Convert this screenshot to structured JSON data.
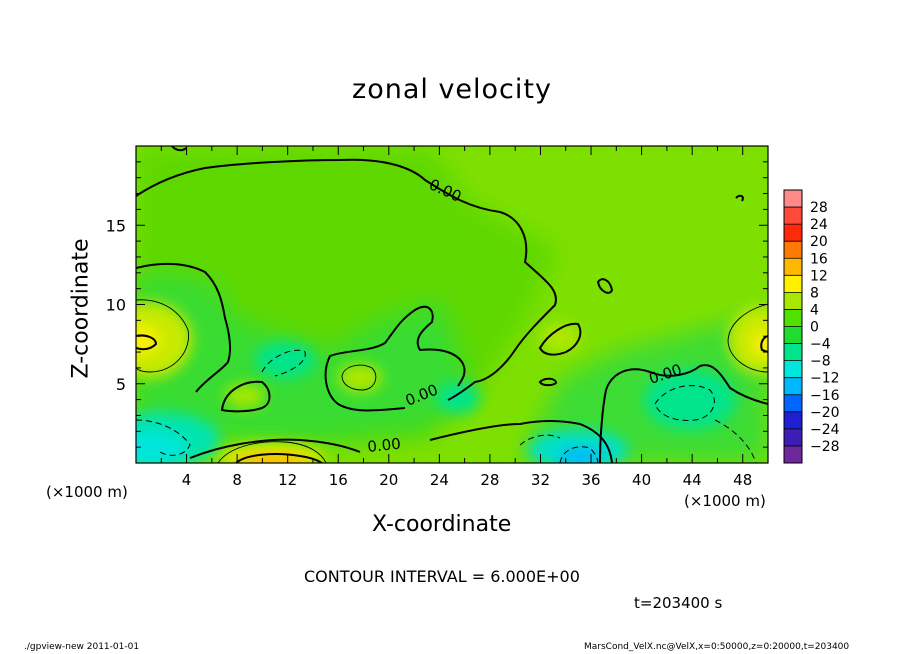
{
  "page": {
    "title": "zonal velocity",
    "contour_interval_text": "CONTOUR INTERVAL = 6.000E+00",
    "time_text": "t=203400 s",
    "footer_left": "./gpview-new  2011-01-01",
    "footer_right": "MarsCond_VelX.nc@VelX,x=0:50000,z=0:20000,t=203400"
  },
  "chart_data": {
    "type": "heatmap",
    "title": "zonal velocity",
    "xlabel": "X-coordinate",
    "ylabel": "Z-coordinate",
    "x_unit_text": "(×1000 m)",
    "xlim": [
      0,
      50
    ],
    "ylim": [
      0,
      20
    ],
    "x_ticks": [
      4,
      8,
      12,
      16,
      20,
      24,
      28,
      32,
      36,
      40,
      44,
      48
    ],
    "y_ticks": [
      5,
      10,
      15
    ],
    "colorbar_levels": [
      28,
      24,
      20,
      16,
      12,
      8,
      4,
      0,
      -4,
      -8,
      -12,
      -16,
      -20,
      -24,
      -28
    ],
    "colorbar_colors": [
      "#ff8a8a",
      "#ff4a3a",
      "#ff2a0a",
      "#ff7a00",
      "#ffb800",
      "#fff000",
      "#a8e800",
      "#52e000",
      "#20dc30",
      "#00e48c",
      "#00e6dc",
      "#00b8ff",
      "#0066ff",
      "#1e1ed2",
      "#3c1eb4",
      "#6e289b"
    ],
    "contour_labels": [
      "0.00",
      "0.00",
      "0.00",
      "0.00"
    ],
    "features": [
      {
        "name": "warm region left",
        "x": 1,
        "z": 7.8,
        "value": 7
      },
      {
        "name": "warm region right",
        "x": 49.5,
        "z": 7.8,
        "value": 7
      },
      {
        "name": "warm region bottom",
        "x": 12.5,
        "z": 0.3,
        "value": 8
      },
      {
        "name": "cold region bottom-left",
        "x": 2,
        "z": 1.5,
        "value": -7
      },
      {
        "name": "cold region bottom",
        "x": 34.5,
        "z": 0.5,
        "value": -9
      },
      {
        "name": "cold region right",
        "x": 44,
        "z": 4,
        "value": -5
      },
      {
        "name": "cold region mid",
        "x": 24.5,
        "z": 4.5,
        "value": -5
      }
    ]
  }
}
